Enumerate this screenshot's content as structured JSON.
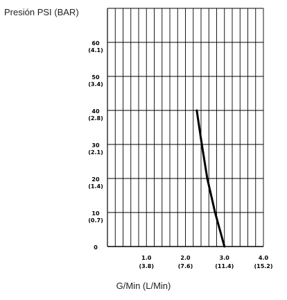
{
  "chart_data": {
    "type": "line",
    "title": "",
    "ylabel": "Presión PSI (BAR)",
    "xlabel": "G/Min (L/Min)",
    "xlim": [
      0,
      4.0
    ],
    "ylim": [
      0,
      70
    ],
    "grid": true,
    "y_ticks": [
      {
        "value": 0,
        "label": "0",
        "sublabel": ""
      },
      {
        "value": 10,
        "label": "10",
        "sublabel": "(0.7)"
      },
      {
        "value": 20,
        "label": "20",
        "sublabel": "(1.4)"
      },
      {
        "value": 30,
        "label": "30",
        "sublabel": "(2.1)"
      },
      {
        "value": 40,
        "label": "40",
        "sublabel": "(2.8)"
      },
      {
        "value": 50,
        "label": "50",
        "sublabel": "(3.4)"
      },
      {
        "value": 60,
        "label": "60",
        "sublabel": "(4.1)"
      }
    ],
    "x_ticks": [
      {
        "value": 1.0,
        "label": "1.0",
        "sublabel": "(3.8)"
      },
      {
        "value": 2.0,
        "label": "2.0",
        "sublabel": "(7.6)"
      },
      {
        "value": 3.0,
        "label": "3.0",
        "sublabel": "(11.4)"
      },
      {
        "value": 4.0,
        "label": "4.0",
        "sublabel": "(15.2)"
      }
    ],
    "series": [
      {
        "x": [
          2.29,
          2.42,
          2.56,
          2.76,
          3.0
        ],
        "y": [
          40,
          30,
          20,
          10,
          0
        ]
      }
    ]
  }
}
